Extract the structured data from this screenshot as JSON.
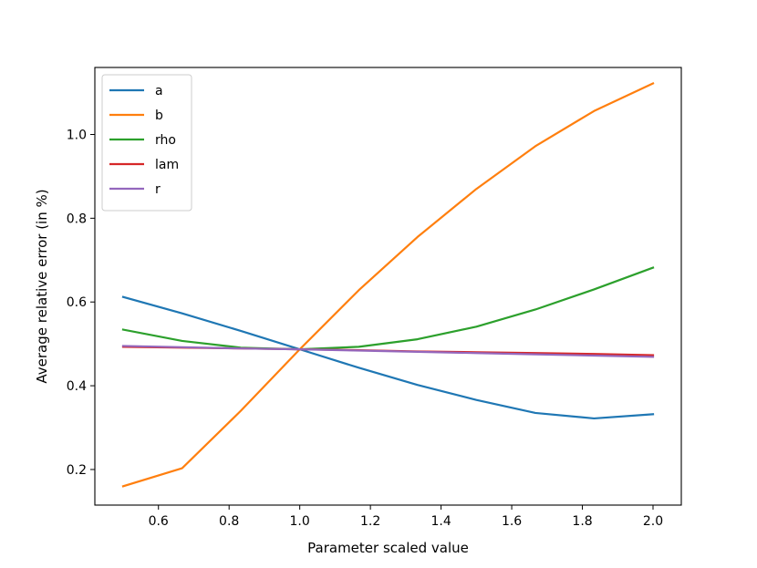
{
  "chart_data": {
    "type": "line",
    "xlabel": "Parameter scaled value",
    "ylabel": "Average relative error (in %)",
    "xlim": [
      0.42,
      2.08
    ],
    "ylim": [
      0.115,
      1.16
    ],
    "xticks": [
      0.6,
      0.8,
      1.0,
      1.2,
      1.4,
      1.6,
      1.8,
      2.0
    ],
    "xtick_labels": [
      "0.6",
      "0.8",
      "1.0",
      "1.2",
      "1.4",
      "1.6",
      "1.8",
      "2.0"
    ],
    "yticks": [
      0.2,
      0.4,
      0.6,
      0.8,
      1.0
    ],
    "ytick_labels": [
      "0.2",
      "0.4",
      "0.6",
      "0.8",
      "1.0"
    ],
    "legend_position": "top-left",
    "grid": false,
    "x": [
      0.5,
      0.667,
      0.833,
      1.0,
      1.167,
      1.333,
      1.5,
      1.667,
      1.833,
      2.0
    ],
    "series": [
      {
        "name": "a",
        "color": "#1f77b4",
        "values": [
          0.612,
          0.573,
          0.531,
          0.487,
          0.443,
          0.402,
          0.366,
          0.335,
          0.322,
          0.332
        ]
      },
      {
        "name": "b",
        "color": "#ff7f0e",
        "values": [
          0.16,
          0.203,
          0.34,
          0.487,
          0.628,
          0.755,
          0.87,
          0.972,
          1.056,
          1.122
        ]
      },
      {
        "name": "rho",
        "color": "#2ca02c",
        "values": [
          0.534,
          0.507,
          0.491,
          0.487,
          0.493,
          0.511,
          0.541,
          0.582,
          0.63,
          0.682
        ]
      },
      {
        "name": "lam",
        "color": "#d62728",
        "values": [
          0.493,
          0.491,
          0.489,
          0.487,
          0.485,
          0.482,
          0.48,
          0.478,
          0.476,
          0.473
        ]
      },
      {
        "name": "r",
        "color": "#9467bd",
        "values": [
          0.495,
          0.492,
          0.489,
          0.487,
          0.484,
          0.481,
          0.478,
          0.475,
          0.472,
          0.469
        ]
      }
    ]
  }
}
